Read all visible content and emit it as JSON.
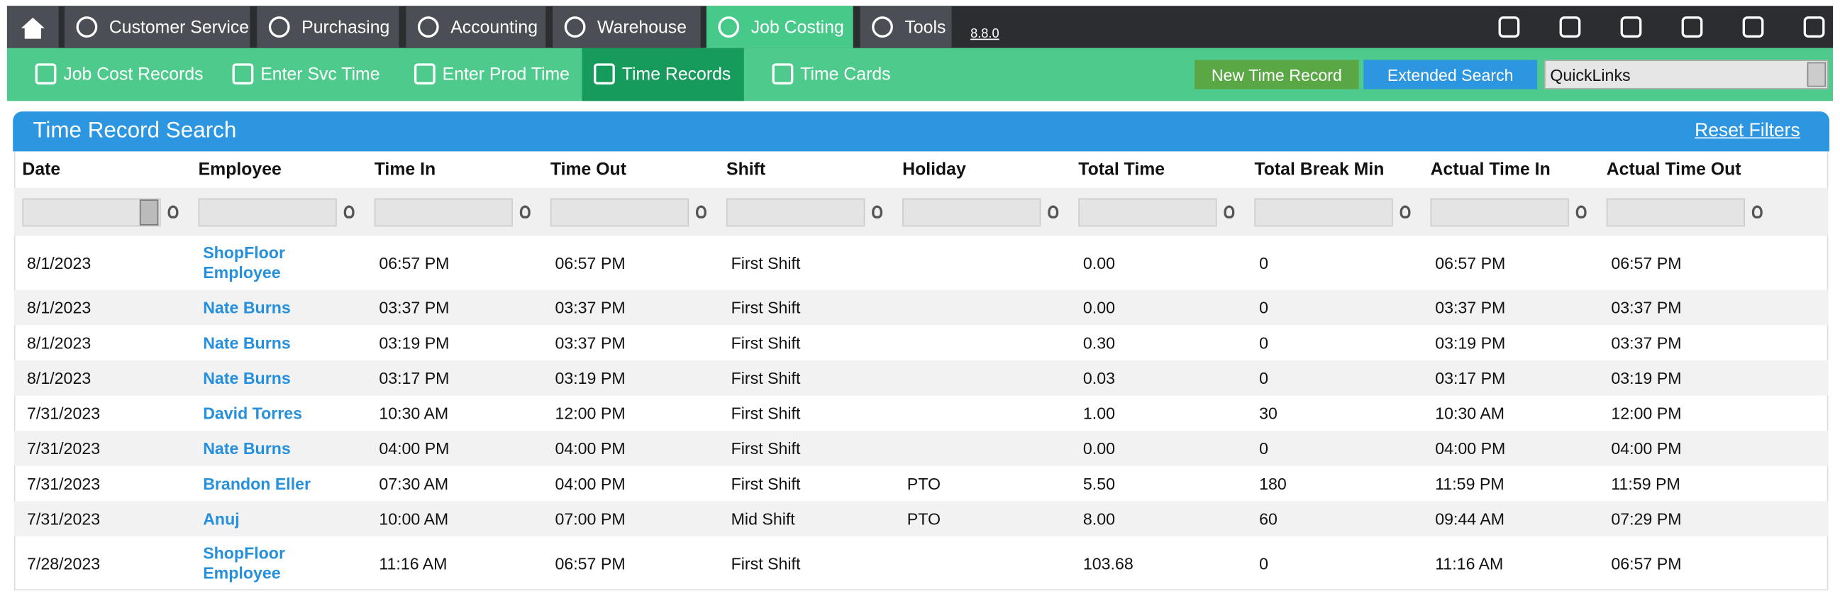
{
  "top_nav": {
    "tabs": [
      "Customer Service",
      "Purchasing",
      "Accounting",
      "Warehouse",
      "Job Costing",
      "Tools"
    ],
    "version": "8.8.0"
  },
  "sub_nav": {
    "items": [
      "Job Cost Records",
      "Enter Svc Time",
      "Enter Prod Time",
      "Time Records",
      "Time Cards"
    ],
    "buttons": [
      "New Time Record",
      "Extended Search"
    ],
    "quicklinks": "QuickLinks"
  },
  "panel": {
    "title": "Time Record Search",
    "reset": "Reset Filters"
  },
  "table": {
    "columns": [
      "Date",
      "Employee",
      "Time In",
      "Time Out",
      "Shift",
      "Holiday",
      "Total Time",
      "Total Break Min",
      "Actual Time In",
      "Actual Time Out"
    ],
    "rows": [
      [
        "8/1/2023",
        "ShopFloor Employee",
        "06:57 PM",
        "06:57 PM",
        "First Shift",
        "",
        "0.00",
        "0",
        "06:57 PM",
        "06:57 PM"
      ],
      [
        "8/1/2023",
        "Nate Burns",
        "03:37 PM",
        "03:37 PM",
        "First Shift",
        "",
        "0.00",
        "0",
        "03:37 PM",
        "03:37 PM"
      ],
      [
        "8/1/2023",
        "Nate Burns",
        "03:19 PM",
        "03:37 PM",
        "First Shift",
        "",
        "0.30",
        "0",
        "03:19 PM",
        "03:37 PM"
      ],
      [
        "8/1/2023",
        "Nate Burns",
        "03:17 PM",
        "03:19 PM",
        "First Shift",
        "",
        "0.03",
        "0",
        "03:17 PM",
        "03:19 PM"
      ],
      [
        "7/31/2023",
        "David Torres",
        "10:30 AM",
        "12:00 PM",
        "First Shift",
        "",
        "1.00",
        "30",
        "10:30 AM",
        "12:00 PM"
      ],
      [
        "7/31/2023",
        "Nate Burns",
        "04:00 PM",
        "04:00 PM",
        "First Shift",
        "",
        "0.00",
        "0",
        "04:00 PM",
        "04:00 PM"
      ],
      [
        "7/31/2023",
        "Brandon Eller",
        "07:30 AM",
        "04:00 PM",
        "First Shift",
        "PTO",
        "5.50",
        "180",
        "11:59 PM",
        "11:59 PM"
      ],
      [
        "7/31/2023",
        "Anuj",
        "10:00 AM",
        "07:00 PM",
        "Mid Shift",
        "PTO",
        "8.00",
        "60",
        "09:44 AM",
        "07:29 PM"
      ],
      [
        "7/28/2023",
        "ShopFloor Employee",
        "11:16 AM",
        "06:57 PM",
        "First Shift",
        "",
        "103.68",
        "0",
        "11:16 AM",
        "06:57 PM"
      ]
    ]
  }
}
